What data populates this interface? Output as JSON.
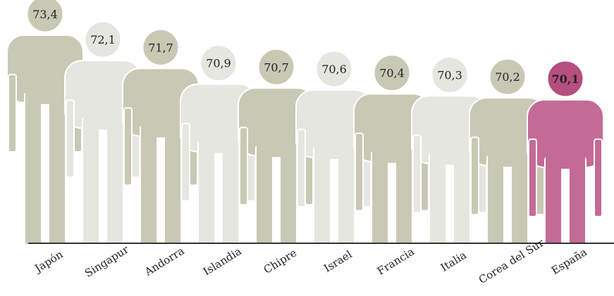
{
  "chart_data": {
    "type": "bar",
    "title": "",
    "xlabel": "",
    "ylabel": "",
    "ylim": [
      69.5,
      74
    ],
    "categories": [
      "Japón",
      "Singapur",
      "Andorra",
      "Islandia",
      "Chipre",
      "Israel",
      "Francia",
      "Italia",
      "Corea del Sur",
      "España"
    ],
    "values": [
      73.4,
      72.1,
      71.7,
      70.9,
      70.7,
      70.6,
      70.4,
      70.3,
      70.2,
      70.1
    ],
    "value_labels": [
      "73,4",
      "72,1",
      "71,7",
      "70,9",
      "70,7",
      "70,6",
      "70,4",
      "70,3",
      "70,2",
      "70,1"
    ],
    "grid": false,
    "legend": "none",
    "colors": {
      "dark": "#c9c8b5",
      "light": "#e6e6e0",
      "highlight": "#c46a96",
      "highlight_head": "#b44f80",
      "outline": "#ffffff",
      "axis": "#333333",
      "text": "#222222"
    }
  }
}
